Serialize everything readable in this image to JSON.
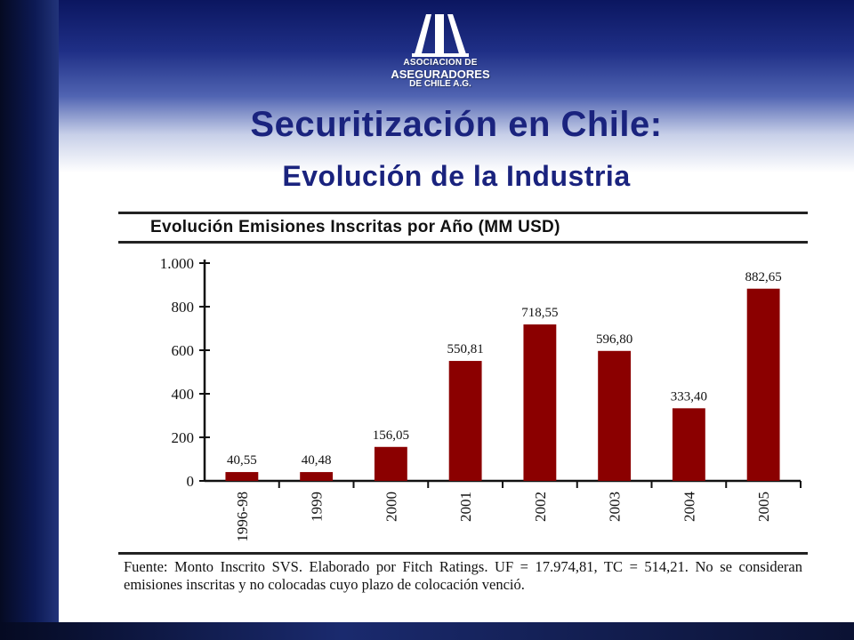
{
  "logo": {
    "line1": "ASOCIACION DE",
    "line2": "ASEGURADORES",
    "line3": "DE CHILE A.G."
  },
  "slide": {
    "title": "Securitización en Chile:",
    "subtitle": "Evolución de la Industria"
  },
  "chart_data": {
    "type": "bar",
    "title": "Evolución Emisiones Inscritas por Año (MM USD)",
    "categories": [
      "1996-98",
      "1999",
      "2000",
      "2001",
      "2002",
      "2003",
      "2004",
      "2005"
    ],
    "values": [
      40.55,
      40.48,
      156.05,
      550.81,
      718.55,
      596.8,
      333.4,
      882.65
    ],
    "value_labels": [
      "40,55",
      "40,48",
      "156,05",
      "550,81",
      "718,55",
      "596,80",
      "333,40",
      "882,65"
    ],
    "yticks": [
      0,
      200,
      400,
      600,
      800,
      1000
    ],
    "ytick_labels": [
      "0",
      "200",
      "400",
      "600",
      "800",
      "1.000"
    ],
    "ylim": [
      0,
      1000
    ],
    "bar_color": "#8b0000",
    "grid": false,
    "legend": "none",
    "source_note": "Fuente: Monto Inscrito SVS. Elaborado por Fitch Ratings. UF = 17.974,81, TC = 514,21. No se consideran emisiones inscritas y no colocadas cuyo plazo de colocación venció."
  },
  "colors": {
    "title": "#1a237e",
    "bars": "#8b0000"
  }
}
